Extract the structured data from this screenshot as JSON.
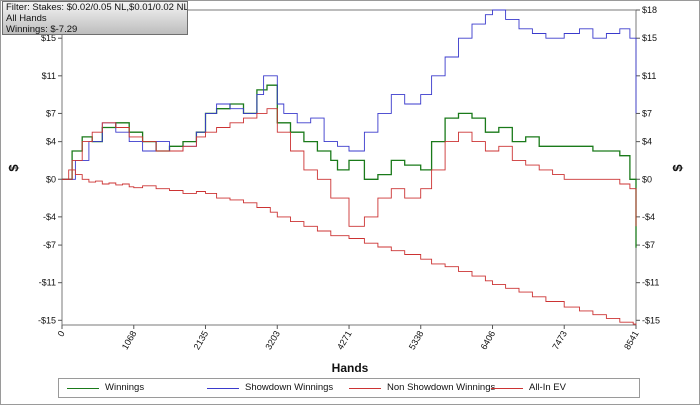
{
  "filter": {
    "line1": "Filter: Stakes: $0.02/0.05 NL,$0.01/0.02 NL",
    "line2": "All Hands",
    "line3": "Winnings: $-7.29"
  },
  "chart_data": {
    "type": "line",
    "title": "",
    "xlabel": "Hands",
    "ylabel": "$",
    "y2label": "$",
    "xlim": [
      0,
      8541
    ],
    "ylim": [
      -15.5,
      18
    ],
    "x_ticks": [
      0,
      1068,
      2135,
      3203,
      4271,
      5338,
      6406,
      7473,
      8541
    ],
    "y_ticks": [
      -15,
      -11,
      -7,
      -4,
      0,
      4,
      7,
      11,
      15,
      18
    ],
    "y_tick_labels": [
      "-$15",
      "-$11",
      "-$7",
      "-$4",
      "$0",
      "$4",
      "$7",
      "$11",
      "$15",
      "$18"
    ],
    "grid": true,
    "legend_position": "bottom",
    "series": [
      {
        "name": "Winnings",
        "color": "#1a7a1a",
        "x": [
          0,
          150,
          300,
          450,
          600,
          800,
          1000,
          1200,
          1400,
          1600,
          1800,
          2000,
          2135,
          2300,
          2500,
          2700,
          2900,
          3050,
          3203,
          3400,
          3600,
          3800,
          4000,
          4100,
          4271,
          4500,
          4700,
          4900,
          5100,
          5338,
          5500,
          5700,
          5900,
          6100,
          6300,
          6500,
          6700,
          6900,
          7100,
          7300,
          7473,
          7700,
          7900,
          8100,
          8300,
          8450,
          8541
        ],
        "y": [
          0,
          3,
          4.5,
          4,
          5.5,
          6,
          5,
          4,
          3,
          3.5,
          4,
          5,
          7,
          7.5,
          8,
          7,
          9.5,
          10,
          6,
          5,
          4,
          3,
          2,
          1,
          2,
          0,
          0.5,
          2,
          1.5,
          1,
          4,
          6.5,
          7,
          6.5,
          5,
          5.5,
          4,
          4.5,
          3.5,
          3.5,
          3.5,
          3.5,
          3,
          3,
          2.5,
          0,
          -7.29
        ]
      },
      {
        "name": "Showdown Winnings",
        "color": "#3a3acc",
        "x": [
          0,
          200,
          400,
          600,
          800,
          1000,
          1200,
          1400,
          1600,
          1800,
          2000,
          2135,
          2300,
          2500,
          2700,
          2900,
          3000,
          3203,
          3300,
          3500,
          3700,
          3900,
          4100,
          4271,
          4500,
          4700,
          4900,
          5100,
          5338,
          5500,
          5700,
          5900,
          6100,
          6300,
          6406,
          6600,
          6800,
          7000,
          7200,
          7473,
          7700,
          7900,
          8100,
          8300,
          8450,
          8541
        ],
        "y": [
          0,
          2,
          4,
          6,
          5,
          4,
          3,
          4,
          3,
          3.5,
          5,
          7,
          8,
          7.5,
          7,
          9,
          11,
          8,
          7,
          6,
          6.5,
          4,
          3.5,
          3,
          5,
          7,
          9,
          8,
          9,
          11,
          13,
          15,
          16.5,
          17.5,
          18,
          17,
          16,
          15.5,
          15,
          15.5,
          16,
          15,
          15.5,
          16,
          15,
          7
        ]
      },
      {
        "name": "Non Showdown Winnings",
        "color": "#cc3333",
        "x": [
          0,
          100,
          200,
          300,
          400,
          500,
          600,
          700,
          800,
          900,
          1000,
          1068,
          1200,
          1400,
          1600,
          1800,
          2000,
          2135,
          2300,
          2500,
          2700,
          2900,
          3100,
          3203,
          3400,
          3600,
          3800,
          4000,
          4271,
          4500,
          4700,
          4900,
          5100,
          5338,
          5500,
          5700,
          5900,
          6100,
          6300,
          6406,
          6600,
          6800,
          7000,
          7200,
          7473,
          7700,
          7900,
          8100,
          8300,
          8500,
          8541
        ],
        "y": [
          0,
          1,
          0.5,
          0,
          -0.3,
          -0.2,
          -0.5,
          -0.4,
          -0.6,
          -0.5,
          -0.8,
          -0.9,
          -0.7,
          -1,
          -1.2,
          -1.5,
          -1.3,
          -1.5,
          -2,
          -2.2,
          -2.5,
          -3,
          -3.5,
          -4,
          -4.5,
          -5,
          -5.5,
          -6,
          -6.3,
          -6.8,
          -7.2,
          -7.6,
          -8,
          -8.5,
          -9,
          -9.3,
          -9.8,
          -10.3,
          -10.8,
          -11.2,
          -11.6,
          -12,
          -12.5,
          -13,
          -13.6,
          -14,
          -14.4,
          -14.8,
          -15.2,
          -15.4,
          -15.5
        ]
      },
      {
        "name": "All-In EV",
        "color": "#cc3333",
        "x": [
          0,
          150,
          300,
          450,
          600,
          800,
          1000,
          1200,
          1400,
          1600,
          1800,
          2000,
          2135,
          2300,
          2500,
          2700,
          2900,
          3050,
          3203,
          3400,
          3600,
          3800,
          4000,
          4271,
          4500,
          4700,
          4900,
          5100,
          5338,
          5500,
          5700,
          5900,
          6100,
          6300,
          6500,
          6700,
          6900,
          7100,
          7300,
          7473,
          7700,
          7900,
          8100,
          8300,
          8450,
          8541
        ],
        "y": [
          0,
          2,
          4,
          5,
          6,
          5.5,
          4.5,
          4,
          3,
          3,
          3.5,
          4.5,
          5,
          5.5,
          6,
          6.5,
          7,
          7.5,
          5,
          3,
          1,
          0,
          -2,
          -5,
          -4,
          -2,
          -1,
          -2,
          -1,
          1,
          4,
          5,
          4,
          3,
          3.5,
          2,
          1.5,
          1,
          0.5,
          0,
          0,
          0,
          0,
          -0.5,
          -1,
          -5
        ]
      }
    ]
  }
}
